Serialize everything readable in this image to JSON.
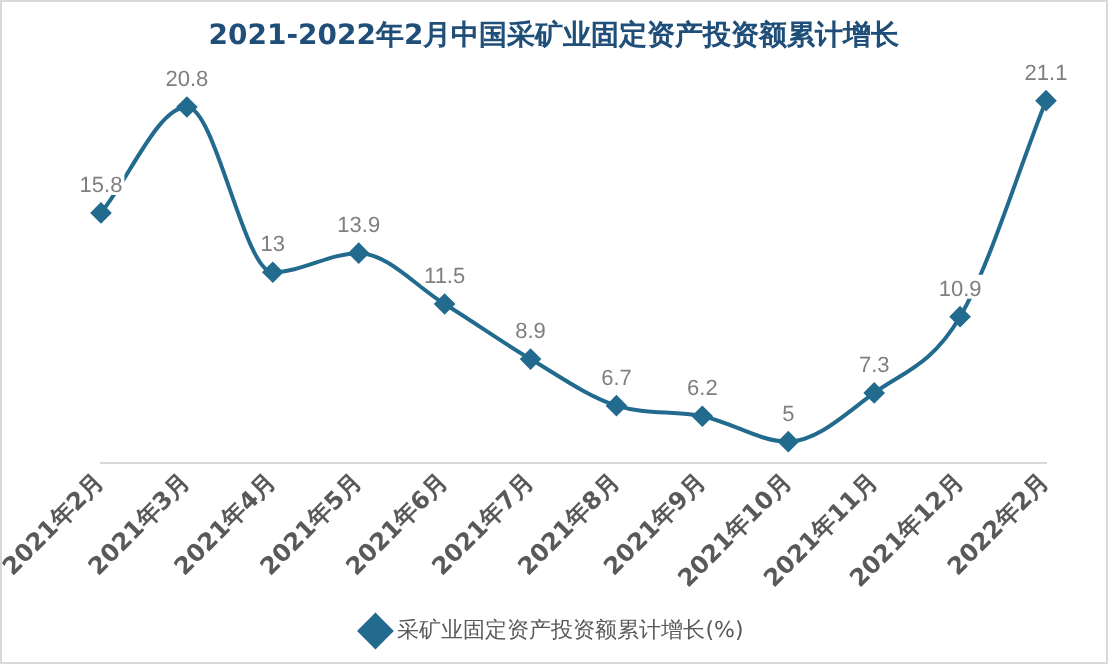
{
  "chart_data": {
    "type": "line",
    "title": "2021-2022年2月中国采矿业固定资产投资额累计增长",
    "categories": [
      "2021年2月",
      "2021年3月",
      "2021年4月",
      "2021年5月",
      "2021年6月",
      "2021年7月",
      "2021年8月",
      "2021年9月",
      "2021年10月",
      "2021年11月",
      "2021年12月",
      "2022年2月"
    ],
    "series": [
      {
        "name": "采矿业固定资产投资额累计增长(%)",
        "color": "#236b8e",
        "values": [
          15.8,
          20.8,
          13,
          13.9,
          11.5,
          8.9,
          6.7,
          6.2,
          5,
          7.3,
          10.9,
          21.1
        ]
      }
    ],
    "data_labels": true,
    "legend": "bottom",
    "marker": "diamond",
    "grid": false
  }
}
